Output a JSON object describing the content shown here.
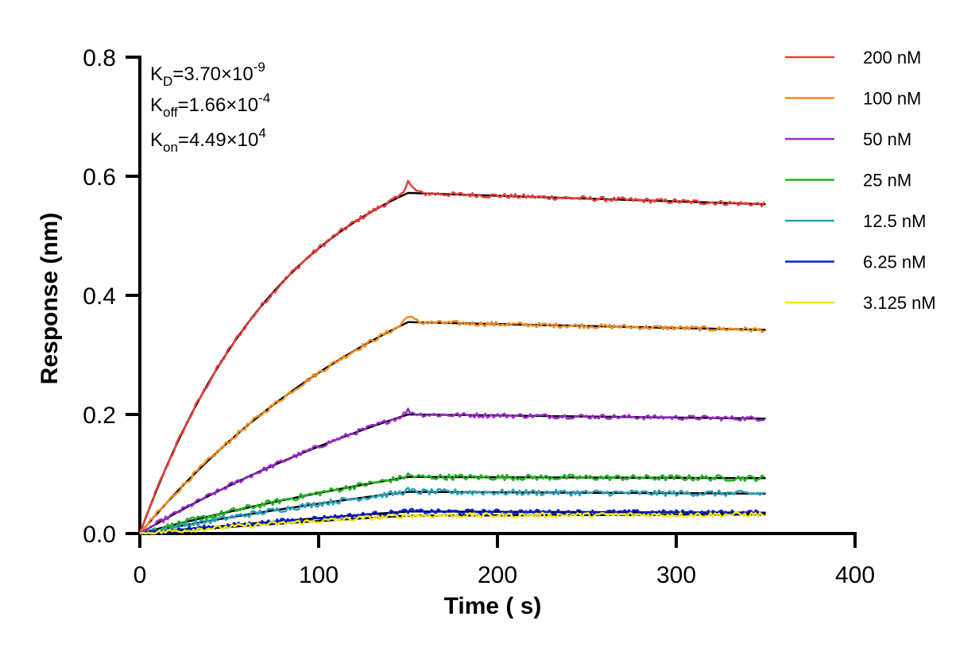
{
  "chart_data": {
    "type": "line",
    "title": "",
    "xlabel": "Time ( s)",
    "ylabel": "Response (nm)",
    "xlim": [
      0,
      400
    ],
    "ylim": [
      0,
      0.8
    ],
    "x_ticks": [
      "0",
      "100",
      "200",
      "300",
      "400"
    ],
    "y_ticks": [
      "0.0",
      "0.2",
      "0.4",
      "0.6",
      "0.8"
    ],
    "grid": false,
    "legend_position": "right",
    "association_end_s": 150,
    "experiment_end_s": 350,
    "kinetics": {
      "kd": {
        "main": "K",
        "sub": "D",
        "rest": "=3.70×10",
        "sup": "-9"
      },
      "koff": {
        "main": "K",
        "sub": "off",
        "rest": "=1.66×10",
        "sup": "-4"
      },
      "kon": {
        "main": "K",
        "sub": "on",
        "rest": "=4.49×10",
        "sup": "4"
      }
    },
    "series": [
      {
        "name": "200 nM",
        "color": "#e8403a",
        "plateau": 0.572,
        "end": 0.553,
        "curvature": 0.012,
        "noise": 0.004
      },
      {
        "name": "100 nM",
        "color": "#f28c1f",
        "plateau": 0.355,
        "end": 0.342,
        "curvature": 0.006,
        "noise": 0.004
      },
      {
        "name": "50 nM",
        "color": "#9b2cc9",
        "plateau": 0.2,
        "end": 0.193,
        "curvature": 0.004,
        "noise": 0.004
      },
      {
        "name": "25 nM",
        "color": "#22b322",
        "plateau": 0.095,
        "end": 0.093,
        "curvature": 0.003,
        "noise": 0.005
      },
      {
        "name": "12.5 nM",
        "color": "#2aa0b8",
        "plateau": 0.07,
        "end": 0.067,
        "curvature": 0.003,
        "noise": 0.005
      },
      {
        "name": "6.25 nM",
        "color": "#0b1ed4",
        "plateau": 0.037,
        "end": 0.035,
        "curvature": 0.002,
        "noise": 0.004
      },
      {
        "name": "3.125 nM",
        "color": "#f0e81c",
        "plateau": 0.03,
        "end": 0.032,
        "curvature": 0.002,
        "noise": 0.004
      }
    ]
  }
}
